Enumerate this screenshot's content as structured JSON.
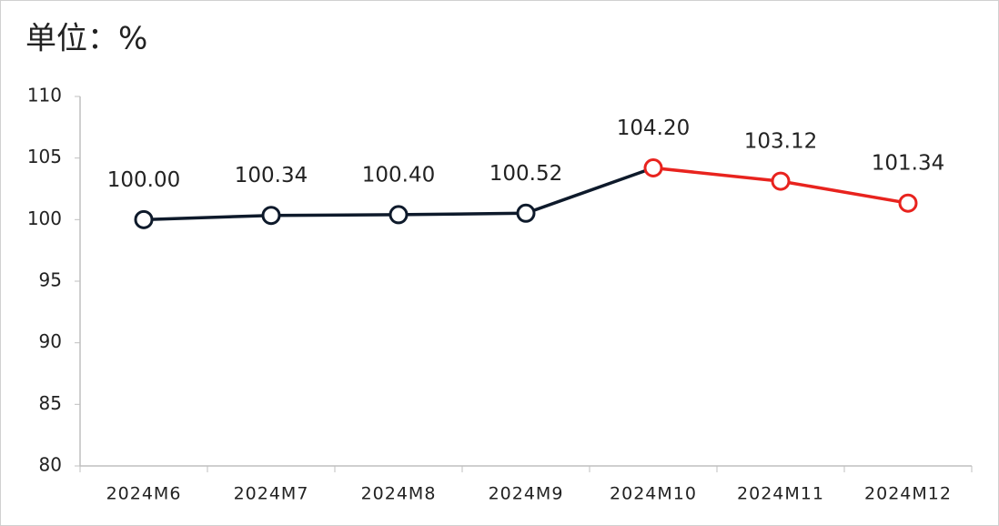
{
  "chart_data": {
    "type": "line",
    "title": "单位：%",
    "categories": [
      "2024M6",
      "2024M7",
      "2024M8",
      "2024M9",
      "2024M10",
      "2024M11",
      "2024M12"
    ],
    "values": [
      100,
      100.34,
      100.4,
      100.52,
      104.2,
      103.12,
      101.34
    ],
    "value_labels": [
      "100.00",
      "100.34",
      "100.40",
      "100.52",
      "104.20",
      "103.12",
      "101.34"
    ],
    "point_colors": [
      "#0e1a2b",
      "#0e1a2b",
      "#0e1a2b",
      "#0e1a2b",
      "#e8231e",
      "#e8231e",
      "#e8231e"
    ],
    "ylim": [
      80,
      110
    ],
    "yticks": [
      80,
      85,
      90,
      95,
      100,
      105,
      110
    ],
    "grid": false
  }
}
